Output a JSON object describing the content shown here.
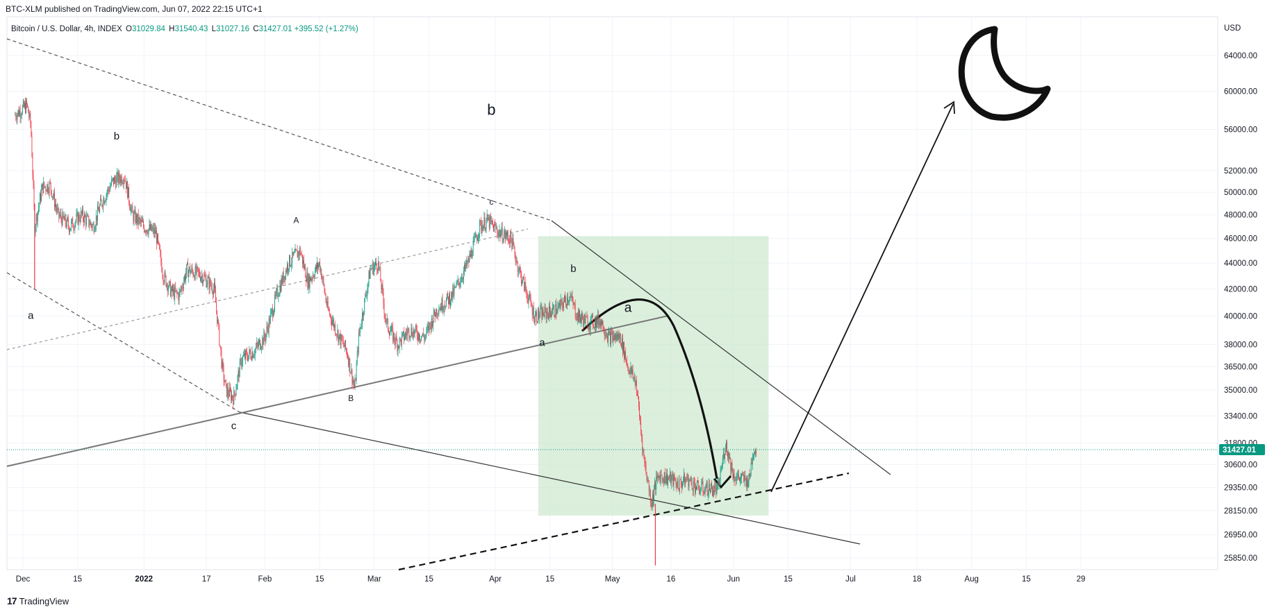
{
  "header": {
    "published": "BTC-XLM published on TradingView.com, Jun 07, 2022 22:15 UTC+1"
  },
  "legend": {
    "symbol": "Bitcoin / U.S. Dollar, 4h, INDEX",
    "open_label": "O",
    "open": "31029.84",
    "high_label": "H",
    "high": "31540.43",
    "low_label": "L",
    "low": "31027.16",
    "close_label": "C",
    "close": "31427.01",
    "change": "+395.52 (+1.27%)"
  },
  "footer": {
    "brand": "TradingView",
    "logo": "17"
  },
  "colors": {
    "up": "#089981",
    "down": "#f23645",
    "box": "#c8e6c9",
    "current_price_bg": "#089981"
  },
  "chart_data": {
    "type": "candlestick",
    "scale": "log",
    "currency": "USD",
    "y_ticks": [
      "64000.00",
      "60000.00",
      "56000.00",
      "52000.00",
      "50000.00",
      "48000.00",
      "46000.00",
      "44000.00",
      "42000.00",
      "40000.00",
      "38000.00",
      "36500.00",
      "35000.00",
      "33400.00",
      "31800.00",
      "30600.00",
      "29350.00",
      "28150.00",
      "26950.00",
      "25850.00"
    ],
    "x_ticks": [
      "Dec",
      "15",
      "2022",
      "17",
      "Feb",
      "15",
      "Mar",
      "15",
      "Apr",
      "15",
      "May",
      "16",
      "Jun",
      "15",
      "Jul",
      "18",
      "Aug",
      "15",
      "29"
    ],
    "current_price": "31427.01",
    "price_path": [
      [
        "2021-11-29",
        57500
      ],
      [
        "2021-12-02",
        58500
      ],
      [
        "2021-12-03",
        56500
      ],
      [
        "2021-12-04",
        47000
      ],
      [
        "2021-12-06",
        50500
      ],
      [
        "2021-12-08",
        50600
      ],
      [
        "2021-12-10",
        48000
      ],
      [
        "2021-12-13",
        47000
      ],
      [
        "2021-12-16",
        48000
      ],
      [
        "2021-12-19",
        47000
      ],
      [
        "2021-12-21",
        49000
      ],
      [
        "2021-12-24",
        51000
      ],
      [
        "2021-12-27",
        51500
      ],
      [
        "2021-12-29",
        48000
      ],
      [
        "2022-01-01",
        47000
      ],
      [
        "2022-01-04",
        46500
      ],
      [
        "2022-01-06",
        43000
      ],
      [
        "2022-01-08",
        41800
      ],
      [
        "2022-01-10",
        41500
      ],
      [
        "2022-01-12",
        43500
      ],
      [
        "2022-01-16",
        43000
      ],
      [
        "2022-01-19",
        42000
      ],
      [
        "2022-01-21",
        36500
      ],
      [
        "2022-01-22",
        35000
      ],
      [
        "2022-01-24",
        34500
      ],
      [
        "2022-01-26",
        37000
      ],
      [
        "2022-01-29",
        37500
      ],
      [
        "2022-02-01",
        38500
      ],
      [
        "2022-02-04",
        41500
      ],
      [
        "2022-02-07",
        44000
      ],
      [
        "2022-02-10",
        45000
      ],
      [
        "2022-02-12",
        42500
      ],
      [
        "2022-02-15",
        44000
      ],
      [
        "2022-02-17",
        40500
      ],
      [
        "2022-02-20",
        38500
      ],
      [
        "2022-02-22",
        37500
      ],
      [
        "2022-02-24",
        35000
      ],
      [
        "2022-02-25",
        38500
      ],
      [
        "2022-02-28",
        43500
      ],
      [
        "2022-03-02",
        44000
      ],
      [
        "2022-03-04",
        39500
      ],
      [
        "2022-03-07",
        38000
      ],
      [
        "2022-03-10",
        39000
      ],
      [
        "2022-03-14",
        38500
      ],
      [
        "2022-03-17",
        40500
      ],
      [
        "2022-03-21",
        41500
      ],
      [
        "2022-03-25",
        44000
      ],
      [
        "2022-03-28",
        47000
      ],
      [
        "2022-03-30",
        47500
      ],
      [
        "2022-04-02",
        46500
      ],
      [
        "2022-04-05",
        46000
      ],
      [
        "2022-04-07",
        43500
      ],
      [
        "2022-04-11",
        40000
      ],
      [
        "2022-04-14",
        40200
      ],
      [
        "2022-04-17",
        40500
      ],
      [
        "2022-04-20",
        41500
      ],
      [
        "2022-04-22",
        40000
      ],
      [
        "2022-04-25",
        39500
      ],
      [
        "2022-04-28",
        39700
      ],
      [
        "2022-04-30",
        38500
      ],
      [
        "2022-05-03",
        38500
      ],
      [
        "2022-05-05",
        36500
      ],
      [
        "2022-05-07",
        35500
      ],
      [
        "2022-05-09",
        31000
      ],
      [
        "2022-05-11",
        28500
      ],
      [
        "2022-05-12",
        29500
      ],
      [
        "2022-05-13",
        30000
      ],
      [
        "2022-05-16",
        29800
      ],
      [
        "2022-05-18",
        29500
      ],
      [
        "2022-05-20",
        29800
      ],
      [
        "2022-05-23",
        29300
      ],
      [
        "2022-05-26",
        29300
      ],
      [
        "2022-05-28",
        29200
      ],
      [
        "2022-05-30",
        31800
      ],
      [
        "2022-06-01",
        30000
      ],
      [
        "2022-06-03",
        29800
      ],
      [
        "2022-06-05",
        29700
      ],
      [
        "2022-06-06",
        31400
      ],
      [
        "2022-06-07",
        31427
      ]
    ],
    "price_low_wick": [
      "2022-05-12",
      25500
    ],
    "wave_labels": [
      {
        "text": "a",
        "date": "2021-12-03",
        "price": 39800
      },
      {
        "text": "b",
        "date": "2021-12-25",
        "price": 55000
      },
      {
        "text": "c",
        "date": "2022-01-24",
        "price": 32600
      },
      {
        "text": "A",
        "date": "2022-02-09",
        "price": 47300
      },
      {
        "text": "B",
        "date": "2022-02-23",
        "price": 34300
      },
      {
        "text": "b",
        "date": "2022-03-31",
        "price": 57500
      },
      {
        "text": "c",
        "date": "2022-03-31",
        "price": 48900
      },
      {
        "text": "b",
        "date": "2022-04-21",
        "price": 43300
      },
      {
        "text": "a",
        "date": "2022-04-13",
        "price": 37900
      },
      {
        "text": "a",
        "date": "2022-05-05",
        "price": 40300
      }
    ],
    "annotations": {
      "projection_box": {
        "date_from": "2022-04-12",
        "date_to": "2022-06-10",
        "price_from": 27900,
        "price_to": 46200
      },
      "target_icon": "crescent-moon-icon"
    }
  }
}
